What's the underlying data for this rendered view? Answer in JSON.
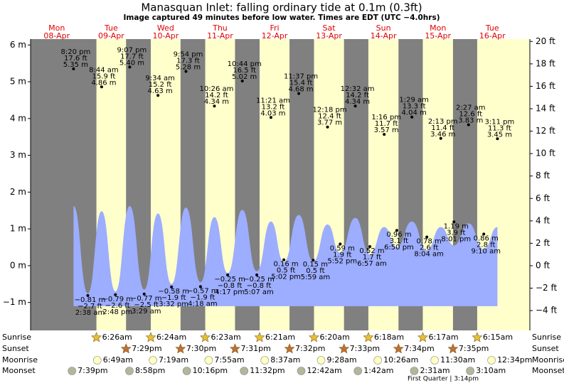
{
  "chart_data": {
    "type": "tide",
    "title": "Manasquan Inlet: falling  ordinary tide at 0.1m (0.3ft)",
    "subtitle": "Image captured 49 minutes before low water. Times are EDT (UTC −4.0hrs)",
    "days": [
      {
        "day": "Mon",
        "date": "08-Apr"
      },
      {
        "day": "Tue",
        "date": "09-Apr"
      },
      {
        "day": "Wed",
        "date": "10-Apr"
      },
      {
        "day": "Thu",
        "date": "11-Apr"
      },
      {
        "day": "Fri",
        "date": "12-Apr"
      },
      {
        "day": "Sat",
        "date": "13-Apr"
      },
      {
        "day": "Sun",
        "date": "14-Apr"
      },
      {
        "day": "Mon",
        "date": "15-Apr"
      },
      {
        "day": "Tue",
        "date": "16-Apr"
      }
    ],
    "ylim": [
      -1.76,
      6.16
    ],
    "yticks": [
      {
        "value": -1,
        "label": "−1 m"
      },
      {
        "value": 0,
        "label": "0 m"
      },
      {
        "value": 1,
        "label": "1 m"
      },
      {
        "value": 2,
        "label": "2 m"
      },
      {
        "value": 3,
        "label": "3 m"
      },
      {
        "value": 4,
        "label": "4 m"
      },
      {
        "value": 5,
        "label": "5 m"
      },
      {
        "value": 6,
        "label": "6 m"
      }
    ],
    "y2lim": [
      -5.77,
      20.21
    ],
    "y2ticks": [
      {
        "value": -4,
        "label": "−4 ft"
      },
      {
        "value": -2,
        "label": "−2 ft"
      },
      {
        "value": 0,
        "label": "0 ft"
      },
      {
        "value": 2,
        "label": "2 ft"
      },
      {
        "value": 4,
        "label": "4 ft"
      },
      {
        "value": 6,
        "label": "6 ft"
      },
      {
        "value": 8,
        "label": "8 ft"
      },
      {
        "value": 10,
        "label": "10 ft"
      },
      {
        "value": 12,
        "label": "12 ft"
      },
      {
        "value": 14,
        "label": "14 ft"
      },
      {
        "value": 16,
        "label": "16 ft"
      },
      {
        "value": 18,
        "label": "18 ft"
      },
      {
        "value": 20,
        "label": "20 ft"
      }
    ],
    "night_color": "#808080",
    "day_color": "#ffffcc",
    "events": [
      {
        "date": "08-Apr",
        "time": "8:20 pm",
        "value": 5.35,
        "label": "5.35 m",
        "ft": {
          "value": 17.6,
          "label": "17.6 ft"
        }
      },
      {
        "date": "09-Apr",
        "time": "2:38 am",
        "value": -0.81,
        "label": "−0.81 m",
        "ft": {
          "value": -2.7,
          "label": "−2.7 ft"
        }
      },
      {
        "date": "09-Apr",
        "time": "8:44 am",
        "value": 4.86,
        "label": "4.86 m",
        "ft": {
          "value": 15.9,
          "label": "15.9 ft"
        }
      },
      {
        "date": "09-Apr",
        "time": "2:48 pm",
        "value": -0.79,
        "label": "−0.79 m",
        "ft": {
          "value": -2.6,
          "label": "−2.6 ft"
        }
      },
      {
        "date": "09-Apr",
        "time": "9:07 pm",
        "value": 5.4,
        "label": "5.40 m",
        "ft": {
          "value": 17.7,
          "label": "17.7 ft"
        }
      },
      {
        "date": "10-Apr",
        "time": "3:29 am",
        "value": -0.77,
        "label": "−0.77 m",
        "ft": {
          "value": -2.5,
          "label": "−2.5 ft"
        }
      },
      {
        "date": "10-Apr",
        "time": "9:34 am",
        "value": 4.63,
        "label": "4.63 m",
        "ft": {
          "value": 15.2,
          "label": "15.2 ft"
        }
      },
      {
        "date": "10-Apr",
        "time": "3:32 pm",
        "value": -0.58,
        "label": "−0.58 m",
        "ft": {
          "value": -1.9,
          "label": "−1.9 ft"
        }
      },
      {
        "date": "10-Apr",
        "time": "9:54 pm",
        "value": 5.28,
        "label": "5.28 m",
        "ft": {
          "value": 17.3,
          "label": "17.3 ft"
        }
      },
      {
        "date": "11-Apr",
        "time": "4:18 am",
        "value": -0.57,
        "label": "−0.57 m",
        "ft": {
          "value": -1.9,
          "label": "−1.9 ft"
        }
      },
      {
        "date": "11-Apr",
        "time": "10:26 am",
        "value": 4.34,
        "label": "4.34 m",
        "ft": {
          "value": 14.2,
          "label": "14.2 ft"
        }
      },
      {
        "date": "11-Apr",
        "time": "4:17 pm",
        "value": -0.25,
        "label": "−0.25 m",
        "ft": {
          "value": -0.8,
          "label": "−0.8 ft"
        }
      },
      {
        "date": "11-Apr",
        "time": "10:44 pm",
        "value": 5.02,
        "label": "5.02 m",
        "ft": {
          "value": 16.5,
          "label": "16.5 ft"
        }
      },
      {
        "date": "12-Apr",
        "time": "5:07 am",
        "value": -0.25,
        "label": "−0.25 m",
        "ft": {
          "value": -0.8,
          "label": "−0.8 ft"
        }
      },
      {
        "date": "12-Apr",
        "time": "11:21 am",
        "value": 4.03,
        "label": "4.03 m",
        "ft": {
          "value": 13.2,
          "label": "13.2 ft"
        }
      },
      {
        "date": "12-Apr",
        "time": "5:02 pm",
        "value": 0.16,
        "label": "0.16 m",
        "ft": {
          "value": 0.5,
          "label": "0.5 ft"
        }
      },
      {
        "date": "12-Apr",
        "time": "11:37 pm",
        "value": 4.68,
        "label": "4.68 m",
        "ft": {
          "value": 15.4,
          "label": "15.4 ft"
        }
      },
      {
        "date": "13-Apr",
        "time": "5:59 am",
        "value": 0.15,
        "label": "0.15 m",
        "ft": {
          "value": 0.5,
          "label": "0.5 ft"
        }
      },
      {
        "date": "13-Apr",
        "time": "12:18 pm",
        "value": 3.77,
        "label": "3.77 m",
        "ft": {
          "value": 12.4,
          "label": "12.4 ft"
        }
      },
      {
        "date": "13-Apr",
        "time": "5:52 pm",
        "value": 0.59,
        "label": "0.59 m",
        "ft": {
          "value": 1.9,
          "label": "1.9 ft"
        }
      },
      {
        "date": "14-Apr",
        "time": "12:32 am",
        "value": 4.34,
        "label": "4.34 m",
        "ft": {
          "value": 14.2,
          "label": "14.2 ft"
        }
      },
      {
        "date": "14-Apr",
        "time": "6:57 am",
        "value": 0.52,
        "label": "0.52 m",
        "ft": {
          "value": 1.7,
          "label": "1.7 ft"
        }
      },
      {
        "date": "14-Apr",
        "time": "1:16 pm",
        "value": 3.57,
        "label": "3.57 m",
        "ft": {
          "value": 11.7,
          "label": "11.7 ft"
        }
      },
      {
        "date": "14-Apr",
        "time": "6:50 pm",
        "value": 0.96,
        "label": "0.96 m",
        "ft": {
          "value": 3.1,
          "label": "3.1 ft"
        }
      },
      {
        "date": "15-Apr",
        "time": "1:29 am",
        "value": 4.04,
        "label": "4.04 m",
        "ft": {
          "value": 13.3,
          "label": "13.3 ft"
        }
      },
      {
        "date": "15-Apr",
        "time": "8:04 am",
        "value": 0.78,
        "label": "0.78 m",
        "ft": {
          "value": 2.6,
          "label": "2.6 ft"
        }
      },
      {
        "date": "15-Apr",
        "time": "2:13 pm",
        "value": 3.46,
        "label": "3.46 m",
        "ft": {
          "value": 11.4,
          "label": "11.4 ft"
        }
      },
      {
        "date": "15-Apr",
        "time": "8:01 pm",
        "value": 1.19,
        "label": "1.19 m",
        "ft": {
          "value": 3.9,
          "label": "3.9 ft"
        }
      },
      {
        "date": "16-Apr",
        "time": "2:27 am",
        "value": 3.83,
        "label": "3.83 m",
        "ft": {
          "value": 12.6,
          "label": "12.6 ft"
        }
      },
      {
        "date": "16-Apr",
        "time": "9:10 am",
        "value": 0.86,
        "label": "0.86 m",
        "ft": {
          "value": 2.8,
          "label": "2.8 ft"
        }
      },
      {
        "date": "16-Apr",
        "time": "3:11 pm",
        "value": 3.45,
        "label": "3.45 m",
        "ft": {
          "value": 11.3,
          "label": "11.3 ft"
        }
      }
    ],
    "curve": {
      "color": "#9dadff",
      "base": -1.1,
      "values": [
        1.62,
        -0.75,
        1.48,
        -0.7,
        1.62,
        -0.65,
        1.42,
        -0.5,
        1.58,
        -0.45,
        1.32,
        -0.2,
        1.52,
        -0.15,
        1.2,
        0.1,
        1.38,
        0.12,
        1.12,
        0.35,
        1.3,
        0.3,
        1.05,
        0.5,
        1.2,
        0.42,
        1.05,
        0.55,
        1.15,
        0.45,
        1.05
      ]
    },
    "rows": {
      "sunrise": {
        "label": "Sunrise",
        "color": "#e8c030",
        "times": [
          {
            "date": "09-Apr",
            "time": "6:26am"
          },
          {
            "date": "10-Apr",
            "time": "6:24am"
          },
          {
            "date": "11-Apr",
            "time": "6:23am"
          },
          {
            "date": "12-Apr",
            "time": "6:21am"
          },
          {
            "date": "13-Apr",
            "time": "6:20am"
          },
          {
            "date": "14-Apr",
            "time": "6:18am"
          },
          {
            "date": "15-Apr",
            "time": "6:17am"
          },
          {
            "date": "16-Apr",
            "time": "6:15am"
          }
        ]
      },
      "sunset": {
        "label": "Sunset",
        "color": "#c07030",
        "times": [
          {
            "date": "09-Apr",
            "time": "7:29pm"
          },
          {
            "date": "10-Apr",
            "time": "7:30pm"
          },
          {
            "date": "11-Apr",
            "time": "7:31pm"
          },
          {
            "date": "12-Apr",
            "time": "7:32pm"
          },
          {
            "date": "13-Apr",
            "time": "7:33pm"
          },
          {
            "date": "14-Apr",
            "time": "7:34pm"
          },
          {
            "date": "15-Apr",
            "time": "7:35pm"
          }
        ]
      },
      "moonrise": {
        "label": "Moonrise",
        "color": "#ffffc0",
        "times": [
          {
            "date": "09-Apr",
            "time": "6:49am"
          },
          {
            "date": "10-Apr",
            "time": "7:19am"
          },
          {
            "date": "11-Apr",
            "time": "7:55am"
          },
          {
            "date": "12-Apr",
            "time": "8:37am"
          },
          {
            "date": "13-Apr",
            "time": "9:28am"
          },
          {
            "date": "14-Apr",
            "time": "10:26am"
          },
          {
            "date": "15-Apr",
            "time": "11:30am"
          },
          {
            "date": "16-Apr",
            "time": "12:34pm"
          }
        ]
      },
      "moonset": {
        "label": "Moonset",
        "color": "#b0b89c",
        "times": [
          {
            "date": "08-Apr",
            "time": "7:39pm"
          },
          {
            "date": "09-Apr",
            "time": "8:58pm"
          },
          {
            "date": "10-Apr",
            "time": "10:16pm"
          },
          {
            "date": "11-Apr",
            "time": "11:32pm"
          },
          {
            "date": "13-Apr",
            "time": "12:42am"
          },
          {
            "date": "14-Apr",
            "time": "1:42am"
          },
          {
            "date": "15-Apr",
            "time": "2:31am"
          },
          {
            "date": "16-Apr",
            "time": "3:10am"
          }
        ]
      }
    },
    "moon_phase": {
      "text": "First Quarter | 3:14pm",
      "date": "15-Apr"
    }
  }
}
